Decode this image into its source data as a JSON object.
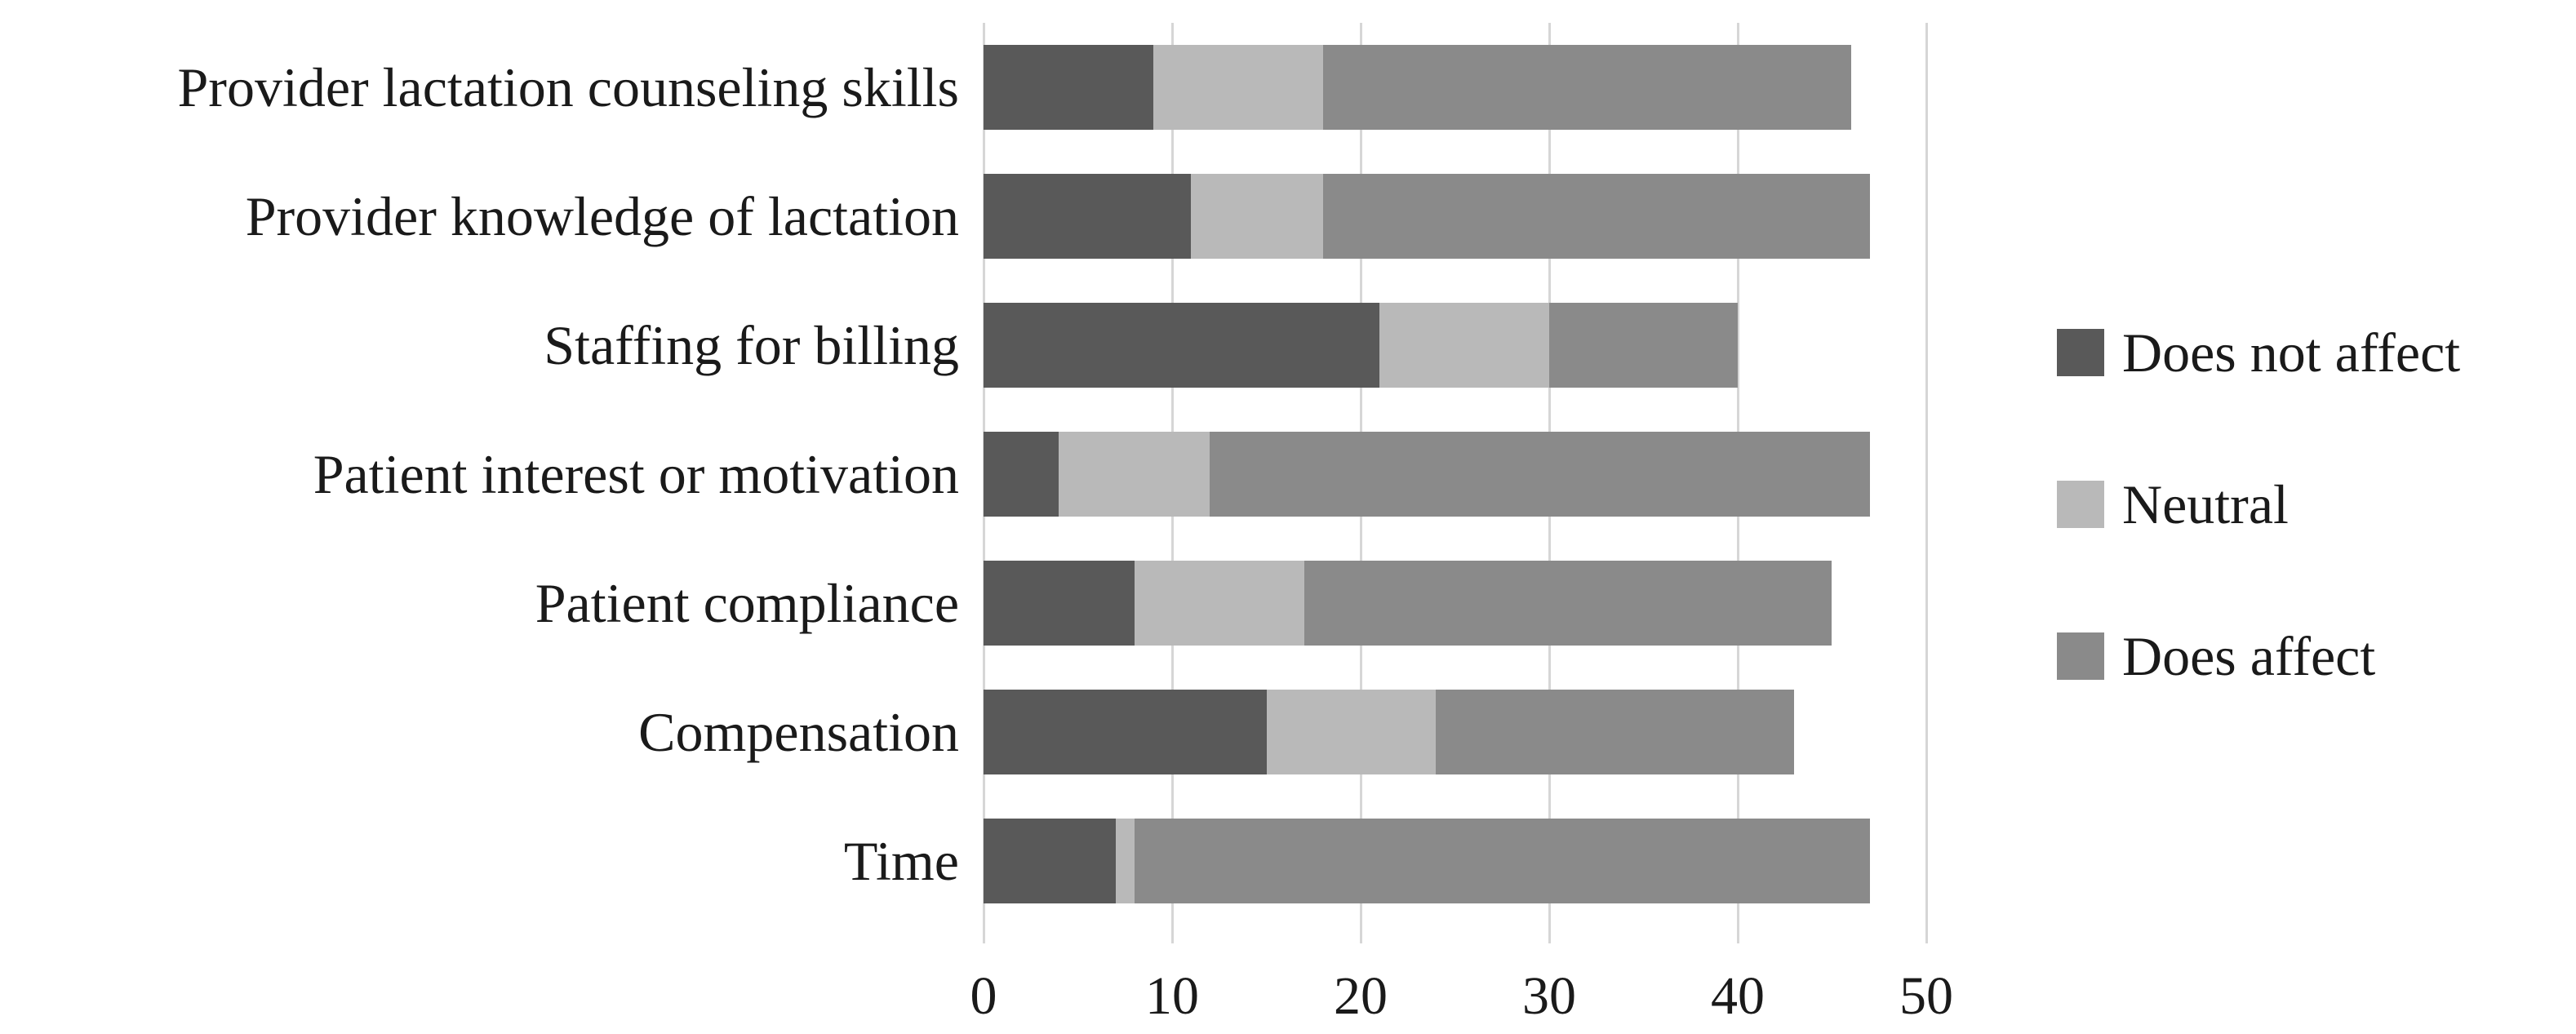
{
  "chart_data": {
    "type": "bar",
    "orientation": "horizontal",
    "stacked": true,
    "title": "",
    "xlabel": "",
    "ylabel": "",
    "categories": [
      "Provider lactation counseling skills",
      "Provider knowledge of lactation",
      "Staffing for billing",
      "Patient interest or motivation",
      "Patient compliance",
      "Compensation",
      "Time"
    ],
    "series": [
      {
        "name": "Does not affect",
        "color": "#595959",
        "values": [
          9,
          11,
          21,
          4,
          8,
          15,
          7
        ]
      },
      {
        "name": "Neutral",
        "color": "#b9b9b9",
        "values": [
          9,
          7,
          9,
          8,
          9,
          9,
          1
        ]
      },
      {
        "name": "Does affect",
        "color": "#8a8a8a",
        "values": [
          28,
          29,
          10,
          35,
          28,
          19,
          39
        ]
      }
    ],
    "totals": [
      46,
      47,
      40,
      47,
      45,
      43,
      47
    ],
    "x_ticks": [
      0,
      10,
      20,
      30,
      40,
      50
    ],
    "xlim": [
      0,
      52
    ],
    "grid": "vertical",
    "legend_position": "right"
  },
  "colors": {
    "gridline": "#d6d6d6",
    "text": "#1a1a1a",
    "background": "#ffffff"
  }
}
